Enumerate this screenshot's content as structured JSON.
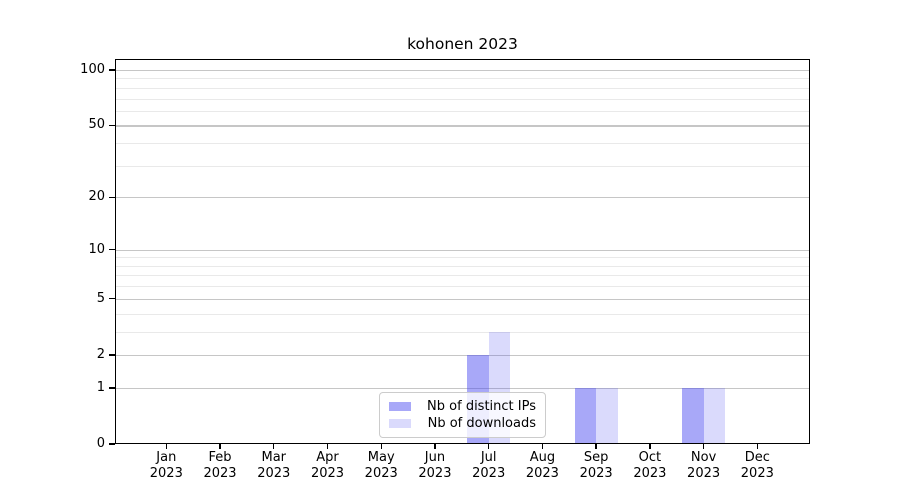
{
  "figure": {
    "title": "kohonen 2023"
  },
  "chart_data": {
    "type": "bar",
    "title": "kohonen 2023",
    "xlabel": "",
    "ylabel": "",
    "categories": [
      "Jan 2023",
      "Feb 2023",
      "Mar 2023",
      "Apr 2023",
      "May 2023",
      "Jun 2023",
      "Jul 2023",
      "Aug 2023",
      "Sep 2023",
      "Oct 2023",
      "Nov 2023",
      "Dec 2023"
    ],
    "series": [
      {
        "name": "Nb of distinct IPs",
        "color": "rgba(70,70,240,0.47)",
        "values": [
          0,
          0,
          0,
          0,
          0,
          0,
          2,
          0,
          1,
          0,
          1,
          0
        ]
      },
      {
        "name": "Nb of downloads",
        "color": "rgba(70,70,240,0.20)",
        "values": [
          0,
          0,
          0,
          0,
          0,
          0,
          3,
          0,
          1,
          0,
          1,
          0
        ]
      }
    ],
    "y_axis": {
      "scale": "log1p",
      "major_ticks": [
        {
          "v": 100,
          "label": "100"
        },
        {
          "v": 50,
          "label": "50"
        },
        {
          "v": 20,
          "label": "20"
        },
        {
          "v": 10,
          "label": "10"
        },
        {
          "v": 5,
          "label": "5"
        },
        {
          "v": 2,
          "label": "2"
        },
        {
          "v": 1,
          "label": "1"
        },
        {
          "v": 0,
          "label": "0"
        }
      ],
      "minor_ticks": [
        3,
        4,
        6,
        7,
        8,
        9,
        30,
        40,
        60,
        70,
        80,
        90
      ],
      "ylim": [
        0,
        113
      ]
    },
    "legend": {
      "position": "lower center",
      "entries": [
        "Nb of distinct IPs",
        "Nb of downloads"
      ]
    },
    "grid": {
      "enabled": true,
      "major_color": "#c6c6c6",
      "minor_color": "#e9e9e9"
    },
    "colors": {
      "distinct_ips": "#aaaaf3",
      "downloads": "#dedefb",
      "spine": "#000000"
    }
  }
}
